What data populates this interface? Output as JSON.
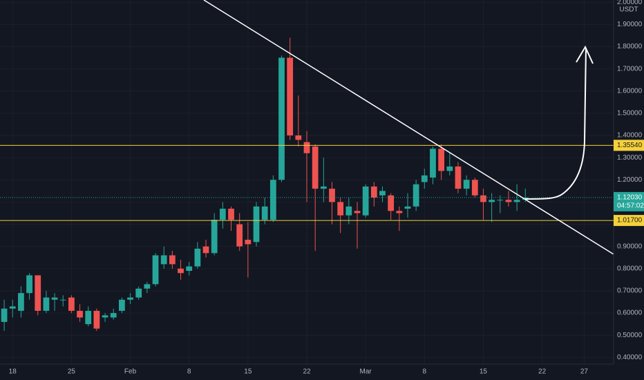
{
  "chart_data": {
    "type": "candlestick",
    "y_unit": "USDT",
    "categories": [
      null,
      "18",
      null,
      null,
      null,
      null,
      null,
      null,
      "25",
      null,
      null,
      null,
      null,
      null,
      null,
      "Feb",
      null,
      null,
      null,
      null,
      null,
      null,
      "8",
      null,
      null,
      null,
      null,
      null,
      null,
      "15",
      null,
      null,
      null,
      null,
      null,
      null,
      "22",
      null,
      null,
      null,
      null,
      null,
      null,
      "Mar",
      null,
      null,
      null,
      null,
      null,
      null,
      "8",
      null,
      null,
      null,
      null,
      null,
      null,
      "15",
      null,
      null,
      null,
      null,
      null,
      null,
      "22",
      null,
      null,
      null,
      null,
      "27",
      null,
      null,
      null
    ],
    "open": [
      0.56,
      0.62,
      0.61,
      0.69,
      0.77,
      0.61,
      0.66,
      0.66,
      0.67,
      0.61,
      0.55,
      0.61,
      0.58,
      0.58,
      0.61,
      0.66,
      0.67,
      0.71,
      0.73,
      0.82,
      0.86,
      0.8,
      0.79,
      0.81,
      0.9,
      0.87,
      1.02,
      1.07,
      1.0,
      0.93,
      0.92,
      1.02,
      1.02,
      1.2,
      1.75,
      1.4,
      1.37,
      1.35,
      1.16,
      1.16,
      1.1,
      1.04,
      1.06,
      1.04,
      1.17,
      1.13,
      1.13,
      1.06,
      1.07,
      1.08,
      1.19,
      1.21,
      1.34,
      1.24,
      1.26,
      1.16,
      1.2,
      1.13,
      1.1,
      1.11,
      1.11,
      1.1,
      1.11,
      null,
      null,
      null,
      null,
      null,
      null,
      null,
      null,
      null,
      null
    ],
    "high": [
      0.66,
      0.66,
      0.72,
      0.78,
      0.77,
      0.7,
      0.69,
      0.68,
      0.68,
      0.64,
      0.63,
      0.62,
      0.6,
      0.62,
      0.67,
      0.69,
      0.72,
      0.74,
      0.87,
      0.9,
      0.88,
      0.84,
      0.83,
      0.92,
      0.93,
      1.05,
      1.1,
      1.08,
      1.05,
      1.01,
      1.1,
      1.12,
      1.22,
      1.76,
      1.84,
      1.58,
      1.42,
      1.36,
      1.3,
      1.19,
      1.12,
      1.12,
      1.1,
      1.18,
      1.19,
      1.17,
      1.14,
      1.08,
      1.14,
      1.2,
      1.25,
      1.35,
      1.36,
      1.32,
      1.28,
      1.22,
      1.21,
      1.16,
      1.14,
      1.13,
      1.15,
      1.18,
      1.16,
      null,
      null,
      null,
      null,
      null,
      null,
      null,
      null,
      null,
      null
    ],
    "low": [
      0.52,
      0.58,
      0.58,
      0.66,
      0.59,
      0.6,
      0.61,
      0.63,
      0.6,
      0.56,
      0.54,
      0.52,
      0.56,
      0.57,
      0.6,
      0.64,
      0.66,
      0.69,
      0.72,
      0.8,
      0.8,
      0.75,
      0.77,
      0.8,
      0.85,
      0.86,
      0.98,
      0.97,
      0.88,
      0.76,
      0.9,
      1.0,
      1.01,
      1.19,
      1.38,
      1.35,
      1.1,
      0.88,
      1.1,
      1.0,
      0.96,
      1.0,
      0.89,
      1.03,
      1.08,
      1.1,
      1.02,
      0.97,
      1.03,
      1.06,
      1.16,
      1.18,
      1.2,
      1.22,
      1.14,
      1.13,
      1.12,
      1.02,
      1.01,
      1.05,
      1.08,
      1.06,
      1.1,
      null,
      null,
      null,
      null,
      null,
      null,
      null,
      null,
      null,
      null
    ],
    "close": [
      0.62,
      0.63,
      0.69,
      0.77,
      0.61,
      0.67,
      0.67,
      0.66,
      0.61,
      0.58,
      0.61,
      0.53,
      0.59,
      0.6,
      0.66,
      0.67,
      0.71,
      0.73,
      0.86,
      0.86,
      0.82,
      0.78,
      0.81,
      0.89,
      0.87,
      1.02,
      1.07,
      1.02,
      0.9,
      0.91,
      1.08,
      1.08,
      1.2,
      1.75,
      1.4,
      1.38,
      1.32,
      1.16,
      1.17,
      1.1,
      1.04,
      1.08,
      1.05,
      1.17,
      1.12,
      1.15,
      1.06,
      1.05,
      1.08,
      1.18,
      1.22,
      1.34,
      1.24,
      1.26,
      1.16,
      1.2,
      1.13,
      1.1,
      1.11,
      1.11,
      1.1,
      1.11,
      1.1203,
      null,
      null,
      null,
      null,
      null,
      null,
      null,
      null,
      null,
      null
    ],
    "up_color": "#26a69a",
    "down_color": "#ef5350",
    "ylim": [
      0.37,
      2.01
    ],
    "yticks": [
      {
        "value": 0.4,
        "label": "0.40000"
      },
      {
        "value": 0.5,
        "label": "0.50000"
      },
      {
        "value": 0.6,
        "label": "0.60000"
      },
      {
        "value": 0.7,
        "label": "0.70000"
      },
      {
        "value": 0.8,
        "label": "0.80000"
      },
      {
        "value": 0.9,
        "label": "0.90000"
      },
      {
        "value": 1.0,
        "label": "1.00000"
      },
      {
        "value": 1.1,
        "label": "1.10000"
      },
      {
        "value": 1.2,
        "label": "1.20000"
      },
      {
        "value": 1.3,
        "label": "1.30000"
      },
      {
        "value": 1.4,
        "label": "1.40000"
      },
      {
        "value": 1.5,
        "label": "1.50000"
      },
      {
        "value": 1.6,
        "label": "1.60000"
      },
      {
        "value": 1.7,
        "label": "1.70000"
      },
      {
        "value": 1.8,
        "label": "1.80000"
      },
      {
        "value": 1.9,
        "label": "1.90000"
      },
      {
        "value": 2.0,
        "label": "2.00000"
      }
    ],
    "grid": true,
    "hlines": [
      {
        "value": 1.3554,
        "label": "1.35540",
        "color": "#f5d13a"
      },
      {
        "value": 1.017,
        "label": "1.01700",
        "color": "#f5d13a"
      }
    ],
    "last_price": {
      "value": 1.1203,
      "label": "1.12030",
      "countdown": "04:57:02",
      "color": "#26a69a"
    }
  }
}
